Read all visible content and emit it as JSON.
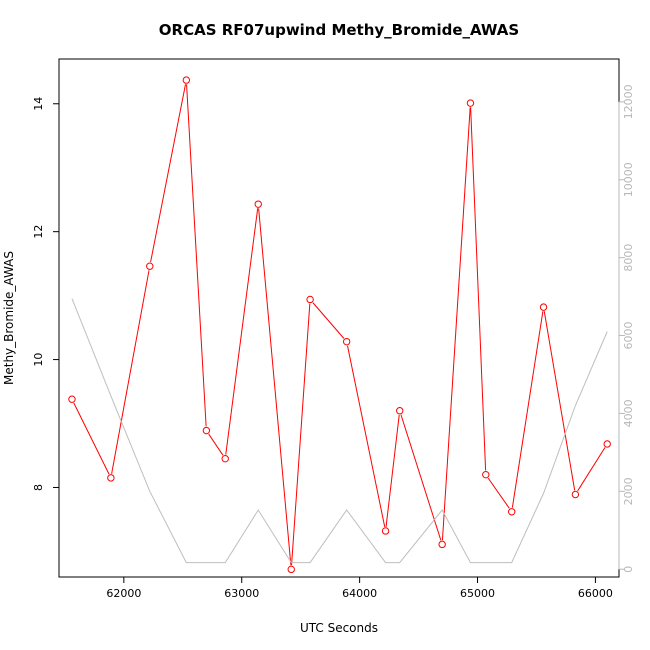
{
  "chart_data": {
    "type": "line",
    "title": "ORCAS RF07upwind Methy_Bromide_AWAS",
    "xlabel": "UTC Seconds",
    "ylabel": "Methy_Bromide_AWAS",
    "xlim": [
      61450,
      66200
    ],
    "ylim": [
      6.6,
      14.7
    ],
    "y2lim": [
      -200,
      13100
    ],
    "x_ticks": [
      62000,
      63000,
      64000,
      65000,
      66000
    ],
    "y_ticks": [
      8,
      10,
      12,
      14
    ],
    "y2_ticks": [
      0,
      2000,
      4000,
      6000,
      8000,
      10000,
      12000
    ],
    "series": [
      {
        "axis": "left",
        "color": "#ff0000",
        "markers": "open-circle",
        "x": [
          61560,
          61890,
          62220,
          62530,
          62700,
          62860,
          63140,
          63420,
          63580,
          63890,
          64220,
          64340,
          64700,
          64940,
          65070,
          65290,
          65560,
          65830,
          66100
        ],
        "y": [
          9.38,
          8.15,
          11.46,
          14.37,
          8.89,
          8.45,
          12.43,
          6.72,
          10.94,
          10.28,
          7.32,
          9.2,
          7.11,
          14.01,
          8.2,
          7.62,
          10.82,
          7.89,
          8.68
        ]
      },
      {
        "axis": "right",
        "color": "#bebebe",
        "markers": "none",
        "x": [
          61560,
          61890,
          62220,
          62530,
          62860,
          63140,
          63420,
          63580,
          63890,
          64220,
          64340,
          64700,
          64940,
          65070,
          65290,
          65560,
          65830,
          66100
        ],
        "y": [
          6950,
          4450,
          2000,
          170,
          170,
          1520,
          170,
          170,
          1520,
          170,
          170,
          1520,
          170,
          170,
          170,
          1950,
          4200,
          6100
        ]
      }
    ]
  }
}
